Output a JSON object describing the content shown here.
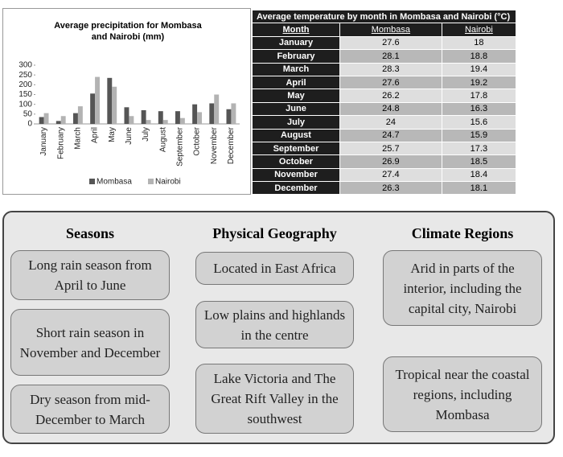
{
  "chart_data": {
    "type": "bar",
    "title": "Average precipitation for Mombasa and Nairobi (mm)",
    "categories": [
      "January",
      "February",
      "March",
      "April",
      "May",
      "June",
      "July",
      "August",
      "September",
      "October",
      "November",
      "December"
    ],
    "series": [
      {
        "name": "Mombasa",
        "color": "#555555",
        "values": [
          35,
          15,
          55,
          155,
          235,
          85,
          70,
          65,
          65,
          100,
          105,
          75
        ]
      },
      {
        "name": "Nairobi",
        "color": "#b3b3b3",
        "values": [
          55,
          40,
          90,
          240,
          190,
          40,
          20,
          20,
          30,
          60,
          150,
          105
        ]
      }
    ],
    "ylim": [
      0,
      300
    ],
    "yticks": [
      0,
      50,
      100,
      150,
      200,
      250,
      300
    ]
  },
  "table": {
    "title": "Average temperature by month in Mombasa and Nairobi (°C)",
    "header": [
      "Month",
      "Mombasa",
      "Nairobi"
    ],
    "rows": [
      [
        "January",
        27.6,
        18
      ],
      [
        "February",
        28.1,
        18.8
      ],
      [
        "March",
        28.3,
        19.4
      ],
      [
        "April",
        27.6,
        19.2
      ],
      [
        "May",
        26.2,
        17.8
      ],
      [
        "June",
        24.8,
        16.3
      ],
      [
        "July",
        24,
        15.6
      ],
      [
        "August",
        24.7,
        15.9
      ],
      [
        "September",
        25.7,
        17.3
      ],
      [
        "October",
        26.9,
        18.5
      ],
      [
        "November",
        27.4,
        18.4
      ],
      [
        "December",
        26.3,
        18.1
      ]
    ]
  },
  "sections": [
    {
      "heading": "Seasons",
      "boxes": [
        "Long rain season from April to June",
        "Short rain season in November and December",
        "Dry season from mid-December to March"
      ]
    },
    {
      "heading": "Physical Geography",
      "boxes": [
        "Located in East Africa",
        "Low plains and highlands in the centre",
        "Lake Victoria and The Great Rift Valley in the southwest"
      ]
    },
    {
      "heading": "Climate Regions",
      "boxes": [
        "Arid in parts of the interior, including the capital city, Nairobi",
        "Tropical near the coastal regions, including Mombasa"
      ]
    }
  ]
}
